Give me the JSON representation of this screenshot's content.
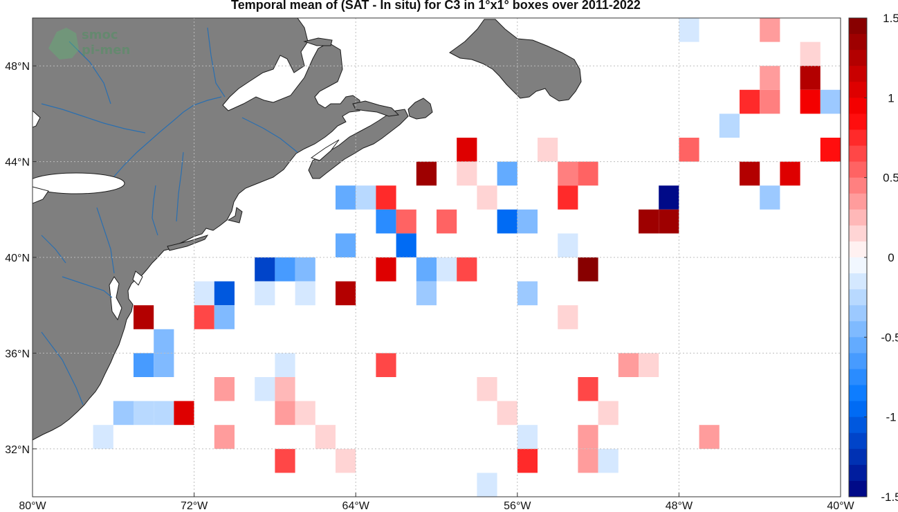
{
  "title": "Temporal mean of (SAT - In situ) for C3 in 1°x1° boxes over 2011-2022",
  "logo": {
    "line1": "smoc",
    "line2": "pi-men"
  },
  "colors": {
    "land": "#7f7f7f",
    "river": "#2a6fb0",
    "coast": "#1a1a1a",
    "grid": "#bdbdbd"
  },
  "map": {
    "lon_range": [
      -80,
      -40
    ],
    "lat_range": [
      30,
      50
    ],
    "xticks": [
      {
        "value": -80,
        "label": "80°W"
      },
      {
        "value": -72,
        "label": "72°W"
      },
      {
        "value": -64,
        "label": "64°W"
      },
      {
        "value": -56,
        "label": "56°W"
      },
      {
        "value": -48,
        "label": "48°W"
      },
      {
        "value": -40,
        "label": "40°W"
      }
    ],
    "yticks": [
      {
        "value": 32,
        "label": "32°N"
      },
      {
        "value": 36,
        "label": "36°N"
      },
      {
        "value": 40,
        "label": "40°N"
      },
      {
        "value": 44,
        "label": "44°N"
      },
      {
        "value": 48,
        "label": "48°N"
      }
    ]
  },
  "colorbar": {
    "range": [
      -1.5,
      1.5
    ],
    "levels": 30,
    "ticks": [
      {
        "value": 1.5,
        "label": "1.5"
      },
      {
        "value": 1,
        "label": "1"
      },
      {
        "value": 0.5,
        "label": "0.5"
      },
      {
        "value": 0,
        "label": "0"
      },
      {
        "value": -0.5,
        "label": "-0.5"
      },
      {
        "value": -1,
        "label": "-1"
      },
      {
        "value": -1.5,
        "label": "-1.5"
      }
    ]
  },
  "chart_data": {
    "type": "heatmap",
    "title": "Temporal mean of (SAT - In situ) for C3 in 1°x1° boxes over 2011-2022",
    "xlabel": "",
    "ylabel": "",
    "xlim": [
      -80,
      -40
    ],
    "ylim": [
      30,
      50
    ],
    "cell_size_deg": 1,
    "cells": [
      {
        "lon": -47.5,
        "lat": 49.5,
        "value": -0.1
      },
      {
        "lon": -43.5,
        "lat": 49.5,
        "value": 0.4
      },
      {
        "lon": -41.5,
        "lat": 48.5,
        "value": 0.15
      },
      {
        "lon": -43.5,
        "lat": 47.5,
        "value": 0.3
      },
      {
        "lon": -41.5,
        "lat": 47.5,
        "value": 1.3
      },
      {
        "lon": -44.5,
        "lat": 46.5,
        "value": 0.7
      },
      {
        "lon": -43.5,
        "lat": 46.5,
        "value": 0.45
      },
      {
        "lon": -41.5,
        "lat": 46.5,
        "value": 0.95
      },
      {
        "lon": -40.5,
        "lat": 46.5,
        "value": -0.35
      },
      {
        "lon": -45.5,
        "lat": 45.5,
        "value": -0.25
      },
      {
        "lon": -58.5,
        "lat": 44.5,
        "value": 1.0
      },
      {
        "lon": -54.5,
        "lat": 44.5,
        "value": 0.15
      },
      {
        "lon": -47.5,
        "lat": 44.5,
        "value": 0.55
      },
      {
        "lon": -40.5,
        "lat": 44.5,
        "value": 0.9
      },
      {
        "lon": -60.5,
        "lat": 43.5,
        "value": 1.4
      },
      {
        "lon": -58.5,
        "lat": 43.5,
        "value": 0.15
      },
      {
        "lon": -56.5,
        "lat": 43.5,
        "value": -0.6
      },
      {
        "lon": -53.5,
        "lat": 43.5,
        "value": 0.45
      },
      {
        "lon": -52.5,
        "lat": 43.5,
        "value": 0.55
      },
      {
        "lon": -44.5,
        "lat": 43.5,
        "value": 1.25
      },
      {
        "lon": -42.5,
        "lat": 43.5,
        "value": 1.0
      },
      {
        "lon": -64.5,
        "lat": 42.5,
        "value": -0.6
      },
      {
        "lon": -63.5,
        "lat": 42.5,
        "value": -0.25
      },
      {
        "lon": -62.5,
        "lat": 42.5,
        "value": 0.7
      },
      {
        "lon": -57.5,
        "lat": 42.5,
        "value": 0.15
      },
      {
        "lon": -53.5,
        "lat": 42.5,
        "value": 0.75
      },
      {
        "lon": -48.5,
        "lat": 42.5,
        "value": -1.5
      },
      {
        "lon": -43.5,
        "lat": 42.5,
        "value": -0.35
      },
      {
        "lon": -62.5,
        "lat": 41.5,
        "value": -0.75
      },
      {
        "lon": -61.5,
        "lat": 41.5,
        "value": 0.55
      },
      {
        "lon": -59.5,
        "lat": 41.5,
        "value": 0.55
      },
      {
        "lon": -56.5,
        "lat": 41.5,
        "value": -1.0
      },
      {
        "lon": -55.5,
        "lat": 41.5,
        "value": -0.5
      },
      {
        "lon": -49.5,
        "lat": 41.5,
        "value": 1.4
      },
      {
        "lon": -48.5,
        "lat": 41.5,
        "value": 1.4
      },
      {
        "lon": -64.5,
        "lat": 40.5,
        "value": -0.6
      },
      {
        "lon": -61.5,
        "lat": 40.5,
        "value": -0.95
      },
      {
        "lon": -53.5,
        "lat": 40.5,
        "value": -0.2
      },
      {
        "lon": -68.5,
        "lat": 39.5,
        "value": -1.1
      },
      {
        "lon": -67.5,
        "lat": 39.5,
        "value": -0.65
      },
      {
        "lon": -66.5,
        "lat": 39.5,
        "value": -0.5
      },
      {
        "lon": -62.5,
        "lat": 39.5,
        "value": 1.05
      },
      {
        "lon": -60.5,
        "lat": 39.5,
        "value": -0.55
      },
      {
        "lon": -59.5,
        "lat": 39.5,
        "value": -0.2
      },
      {
        "lon": -58.5,
        "lat": 39.5,
        "value": 0.65
      },
      {
        "lon": -52.5,
        "lat": 39.5,
        "value": 1.45
      },
      {
        "lon": -71.5,
        "lat": 38.5,
        "value": -0.1
      },
      {
        "lon": -70.5,
        "lat": 38.5,
        "value": -1.05
      },
      {
        "lon": -68.5,
        "lat": 38.5,
        "value": -0.1
      },
      {
        "lon": -66.5,
        "lat": 38.5,
        "value": -0.15
      },
      {
        "lon": -64.5,
        "lat": 38.5,
        "value": 1.25
      },
      {
        "lon": -60.5,
        "lat": 38.5,
        "value": -0.35
      },
      {
        "lon": -55.5,
        "lat": 38.5,
        "value": -0.4
      },
      {
        "lon": -74.5,
        "lat": 37.5,
        "value": 1.3
      },
      {
        "lon": -71.5,
        "lat": 37.5,
        "value": 0.65
      },
      {
        "lon": -70.5,
        "lat": 37.5,
        "value": -0.5
      },
      {
        "lon": -53.5,
        "lat": 37.5,
        "value": 0.15
      },
      {
        "lon": -73.5,
        "lat": 36.5,
        "value": -0.5
      },
      {
        "lon": -74.5,
        "lat": 35.5,
        "value": -0.7
      },
      {
        "lon": -73.5,
        "lat": 35.5,
        "value": -0.5
      },
      {
        "lon": -67.5,
        "lat": 35.5,
        "value": -0.15
      },
      {
        "lon": -62.5,
        "lat": 35.5,
        "value": 0.6
      },
      {
        "lon": -50.5,
        "lat": 35.5,
        "value": 0.3
      },
      {
        "lon": -49.5,
        "lat": 35.5,
        "value": 0.15
      },
      {
        "lon": -70.5,
        "lat": 34.5,
        "value": 0.3
      },
      {
        "lon": -68.5,
        "lat": 34.5,
        "value": -0.15
      },
      {
        "lon": -67.5,
        "lat": 34.5,
        "value": 0.2
      },
      {
        "lon": -57.5,
        "lat": 34.5,
        "value": 0.15
      },
      {
        "lon": -52.5,
        "lat": 34.5,
        "value": 0.6
      },
      {
        "lon": -75.5,
        "lat": 33.5,
        "value": -0.35
      },
      {
        "lon": -74.5,
        "lat": 33.5,
        "value": -0.25
      },
      {
        "lon": -73.5,
        "lat": 33.5,
        "value": -0.25
      },
      {
        "lon": -72.5,
        "lat": 33.5,
        "value": 1.0
      },
      {
        "lon": -67.5,
        "lat": 33.5,
        "value": 0.35
      },
      {
        "lon": -66.5,
        "lat": 33.5,
        "value": 0.15
      },
      {
        "lon": -56.5,
        "lat": 33.5,
        "value": 0.15
      },
      {
        "lon": -51.5,
        "lat": 33.5,
        "value": 0.15
      },
      {
        "lon": -76.5,
        "lat": 32.5,
        "value": -0.15
      },
      {
        "lon": -70.5,
        "lat": 32.5,
        "value": 0.3
      },
      {
        "lon": -65.5,
        "lat": 32.5,
        "value": 0.15
      },
      {
        "lon": -55.5,
        "lat": 32.5,
        "value": -0.1
      },
      {
        "lon": -52.5,
        "lat": 32.5,
        "value": 0.3
      },
      {
        "lon": -46.5,
        "lat": 32.5,
        "value": 0.35
      },
      {
        "lon": -67.5,
        "lat": 31.5,
        "value": 0.6
      },
      {
        "lon": -64.5,
        "lat": 31.5,
        "value": 0.15
      },
      {
        "lon": -55.5,
        "lat": 31.5,
        "value": 0.8
      },
      {
        "lon": -52.5,
        "lat": 31.5,
        "value": 0.3
      },
      {
        "lon": -51.5,
        "lat": 31.5,
        "value": -0.15
      },
      {
        "lon": -57.5,
        "lat": 30.5,
        "value": -0.1
      }
    ]
  }
}
